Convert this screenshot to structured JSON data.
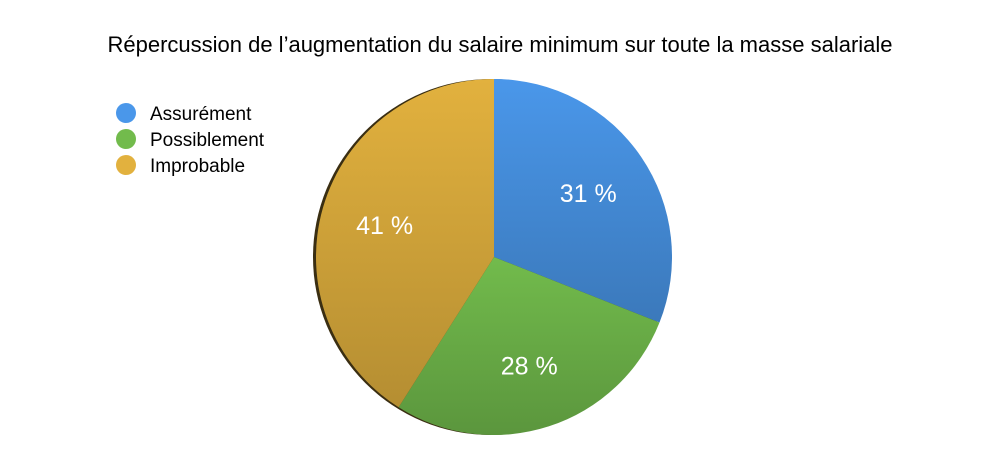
{
  "chart_data": {
    "type": "pie",
    "title": "Répercussion de l’augmentation du salaire minimum sur toute la masse salariale",
    "legend_position": "top-left",
    "slices": [
      {
        "label": "Assurément",
        "value": 31,
        "display": "31 %",
        "color": "#4a97ea"
      },
      {
        "label": "Possiblement",
        "value": 28,
        "display": "28 %",
        "color": "#72bb4c"
      },
      {
        "label": "Improbable",
        "value": 41,
        "display": "41 %",
        "color": "#e2b13e"
      }
    ]
  }
}
